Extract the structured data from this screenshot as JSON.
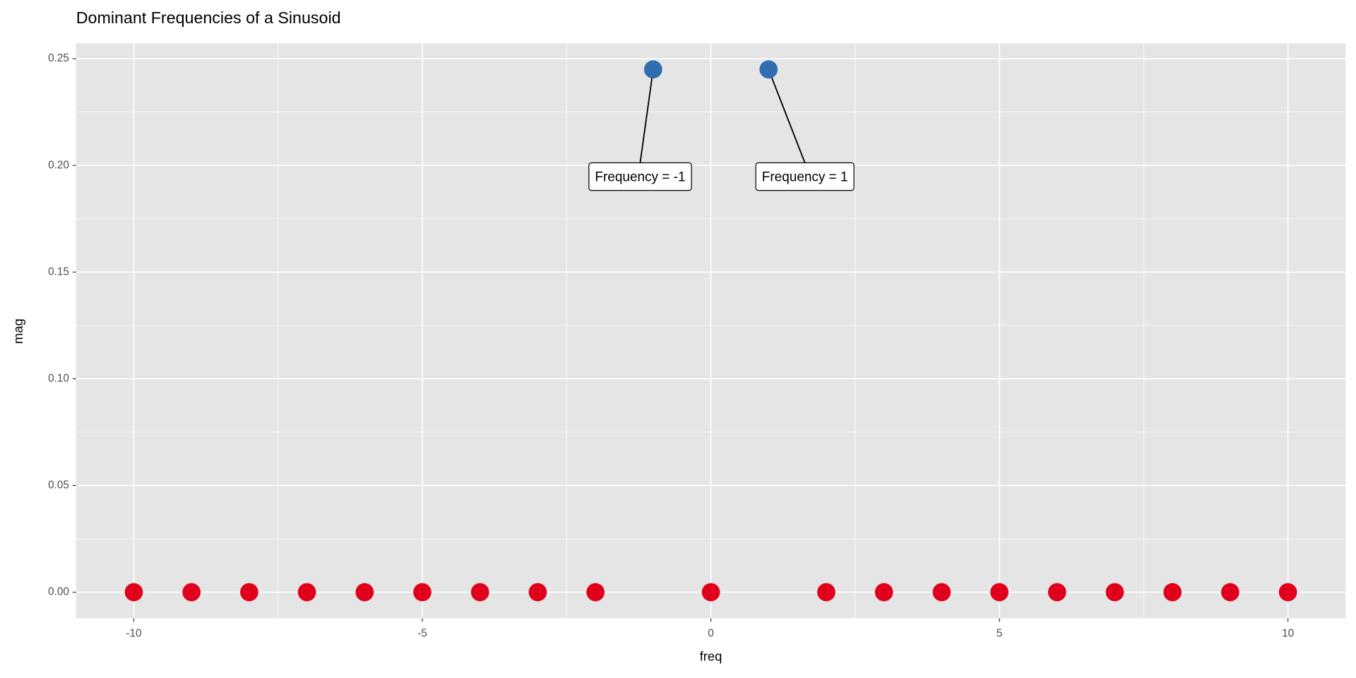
{
  "chart_data": {
    "type": "scatter",
    "title": "Dominant Frequencies of a Sinusoid",
    "x_label": "freq",
    "y_label": "mag",
    "xlim": [
      -11,
      11
    ],
    "xticks": [
      -10,
      -5,
      0,
      5,
      10
    ],
    "ylim": [
      -0.01225,
      0.25725
    ],
    "yticks": [
      {
        "value": 0,
        "label": "0.00"
      },
      0.05,
      {
        "value": 0.1,
        "label": "0.10"
      },
      0.15,
      {
        "value": 0.2,
        "label": "0.20"
      },
      0.25
    ],
    "grid": true,
    "series": [
      {
        "color": "#e0001b",
        "x": [
          -10,
          -9,
          -8,
          -7,
          -6,
          -5,
          -4,
          -3,
          -2,
          0,
          2,
          3,
          4,
          5,
          6,
          7,
          8,
          9,
          10
        ],
        "values": [
          0,
          0,
          0,
          0,
          0,
          0,
          0,
          0,
          0,
          0,
          0,
          0,
          0,
          0,
          0,
          0,
          0,
          0,
          0
        ]
      },
      {
        "color": "#2f6eb0",
        "x": [
          -1,
          1
        ],
        "values": [
          0.245,
          0.245
        ],
        "point_labels": [
          "Frequency = -1",
          "Frequency = 1"
        ]
      }
    ]
  }
}
